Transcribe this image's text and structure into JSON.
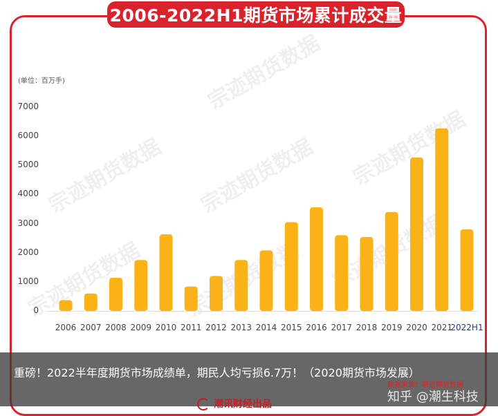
{
  "chart_data": {
    "type": "bar",
    "title": "2006-2022H1期货市场累计成交量",
    "unit": "(单位：百万手)",
    "categories": [
      "2006",
      "2007",
      "2008",
      "2009",
      "2010",
      "2011",
      "2012",
      "2013",
      "2014",
      "2015",
      "2016",
      "2017",
      "2018",
      "2019",
      "2020",
      "2021",
      "2022H1"
    ],
    "values": [
      370,
      600,
      1140,
      1750,
      2630,
      840,
      1200,
      1750,
      2080,
      3050,
      3560,
      2600,
      2540,
      3400,
      5270,
      6270,
      2800
    ],
    "ylim": [
      0,
      7000
    ],
    "yticks": [
      0,
      1000,
      2000,
      3000,
      4000,
      5000,
      6000,
      7000
    ],
    "bar_color": "#fbb217",
    "highlight_label_color": "#1a3a8a",
    "source": "数据来源：宗迹期货数据"
  },
  "watermark_text": "宗迹期货数据",
  "caption": "重磅！2022半年度期货市场成绩单，期民人均亏损6.7万！（2020期货市场发展）",
  "zhihu_watermark": "知乎 @潮生科技",
  "brand": "潮讯财经出品"
}
